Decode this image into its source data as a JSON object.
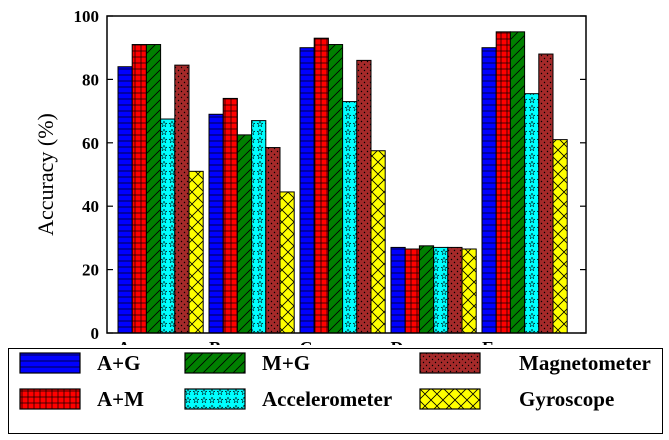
{
  "chart_data": {
    "type": "bar",
    "title": "",
    "xlabel": "",
    "ylabel": "Accuracy (%)",
    "ylim": [
      0,
      100
    ],
    "yticks": [
      0,
      20,
      40,
      60,
      80,
      100
    ],
    "categories": [
      "A",
      "B",
      "C",
      "D",
      "E"
    ],
    "grid": false,
    "legend_position": "bottom",
    "series": [
      {
        "name": "A+G",
        "values": [
          84,
          69,
          90,
          27,
          90
        ],
        "color": "#0000ff",
        "pattern": "horizontal-lines"
      },
      {
        "name": "A+M",
        "values": [
          91,
          74,
          93,
          26.5,
          95
        ],
        "color": "#ff0000",
        "pattern": "grid"
      },
      {
        "name": "M+G",
        "values": [
          91,
          62.5,
          91,
          27.5,
          95
        ],
        "color": "#008000",
        "pattern": "diagonal"
      },
      {
        "name": "Accelerometer",
        "values": [
          67.5,
          67,
          73,
          27,
          75.5
        ],
        "color": "#00ffff",
        "pattern": "stars"
      },
      {
        "name": "Magnetometer",
        "values": [
          84.5,
          58.5,
          86,
          27,
          88
        ],
        "color": "#a52a2a",
        "pattern": "dots"
      },
      {
        "name": "Gyroscope",
        "values": [
          51,
          44.5,
          57.5,
          26.5,
          61
        ],
        "color": "#ffff00",
        "pattern": "crosshatch"
      }
    ],
    "legend_layout": [
      [
        "A+G",
        "M+G",
        "Magnetometer"
      ],
      [
        "A+M",
        "Accelerometer",
        "Gyroscope"
      ]
    ]
  }
}
